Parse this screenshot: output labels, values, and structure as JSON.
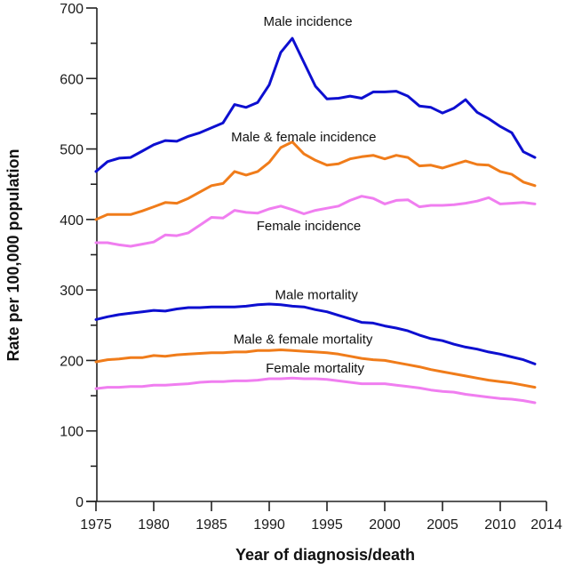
{
  "chart_data": {
    "type": "line",
    "title": "",
    "xlabel": "Year of diagnosis/death",
    "ylabel": "Rate per 100,000 population",
    "xlim": [
      1975,
      2014
    ],
    "ylim": [
      0,
      700
    ],
    "grid": false,
    "legend": "inline-labels",
    "x_ticks": [
      1975,
      1980,
      1985,
      1990,
      1995,
      2000,
      2005,
      2010,
      2014
    ],
    "x_tick_labels": [
      "1975",
      "1980",
      "1985",
      "1990",
      "1995",
      "2000",
      "2005",
      "2010",
      "2014"
    ],
    "y_ticks": [
      0,
      100,
      200,
      300,
      400,
      500,
      600,
      700
    ],
    "y_tick_labels": [
      "0",
      "100",
      "200",
      "300",
      "400",
      "500",
      "600",
      "700"
    ],
    "y_minor_ticks": [
      50,
      150,
      250,
      350,
      450,
      550,
      650
    ],
    "x": [
      1975,
      1976,
      1977,
      1978,
      1979,
      1980,
      1981,
      1982,
      1983,
      1984,
      1985,
      1986,
      1987,
      1988,
      1989,
      1990,
      1991,
      1992,
      1993,
      1994,
      1995,
      1996,
      1997,
      1998,
      1999,
      2000,
      2001,
      2002,
      2003,
      2004,
      2005,
      2006,
      2007,
      2008,
      2009,
      2010,
      2011,
      2012,
      2013
    ],
    "series": [
      {
        "name": "Male incidence",
        "color": "#0d0fd0",
        "label_pos": [
          1989.5,
          675
        ],
        "values": [
          468,
          482,
          487,
          488,
          497,
          506,
          512,
          511,
          518,
          523,
          530,
          537,
          563,
          559,
          566,
          591,
          637,
          657,
          623,
          589,
          571,
          572,
          575,
          572,
          581,
          581,
          582,
          575,
          561,
          559,
          551,
          558,
          570,
          552,
          543,
          532,
          523,
          496,
          488
        ]
      },
      {
        "name": "Male & female incidence",
        "color": "#f07c1a",
        "label_pos": [
          1986.7,
          511
        ],
        "values": [
          400,
          407,
          407,
          407,
          412,
          418,
          424,
          423,
          430,
          439,
          448,
          451,
          468,
          463,
          468,
          481,
          502,
          510,
          493,
          484,
          477,
          479,
          486,
          489,
          491,
          486,
          491,
          488,
          476,
          477,
          473,
          478,
          483,
          478,
          477,
          468,
          464,
          453,
          448
        ]
      },
      {
        "name": "Female incidence",
        "color": "#f07ef0",
        "label_pos": [
          1988.9,
          385
        ],
        "values": [
          367,
          367,
          364,
          362,
          365,
          368,
          378,
          377,
          381,
          392,
          403,
          402,
          413,
          410,
          409,
          415,
          419,
          414,
          408,
          413,
          416,
          419,
          427,
          433,
          430,
          422,
          427,
          428,
          418,
          420,
          420,
          421,
          423,
          426,
          431,
          422,
          423,
          424,
          422
        ]
      },
      {
        "name": "Male mortality",
        "color": "#0d0fd0",
        "label_pos": [
          1990.5,
          287
        ],
        "values": [
          258,
          262,
          265,
          267,
          269,
          271,
          270,
          273,
          275,
          275,
          276,
          276,
          276,
          277,
          279,
          280,
          279,
          277,
          276,
          272,
          269,
          264,
          259,
          254,
          253,
          249,
          246,
          242,
          236,
          231,
          228,
          223,
          219,
          216,
          212,
          209,
          205,
          201,
          195
        ]
      },
      {
        "name": "Male & female mortality",
        "color": "#f07c1a",
        "label_pos": [
          1986.9,
          224
        ],
        "values": [
          198,
          201,
          202,
          204,
          204,
          207,
          206,
          208,
          209,
          210,
          211,
          211,
          212,
          212,
          214,
          214,
          215,
          214,
          213,
          212,
          211,
          209,
          206,
          203,
          201,
          200,
          197,
          194,
          191,
          187,
          184,
          181,
          178,
          175,
          172,
          170,
          168,
          165,
          162
        ]
      },
      {
        "name": "Female mortality",
        "color": "#f07ef0",
        "label_pos": [
          1989.7,
          183
        ],
        "values": [
          160,
          162,
          162,
          163,
          163,
          165,
          165,
          166,
          167,
          169,
          170,
          170,
          171,
          171,
          172,
          174,
          174,
          175,
          174,
          174,
          173,
          171,
          169,
          167,
          167,
          167,
          165,
          163,
          161,
          158,
          156,
          155,
          152,
          150,
          148,
          146,
          145,
          143,
          140
        ]
      }
    ]
  }
}
